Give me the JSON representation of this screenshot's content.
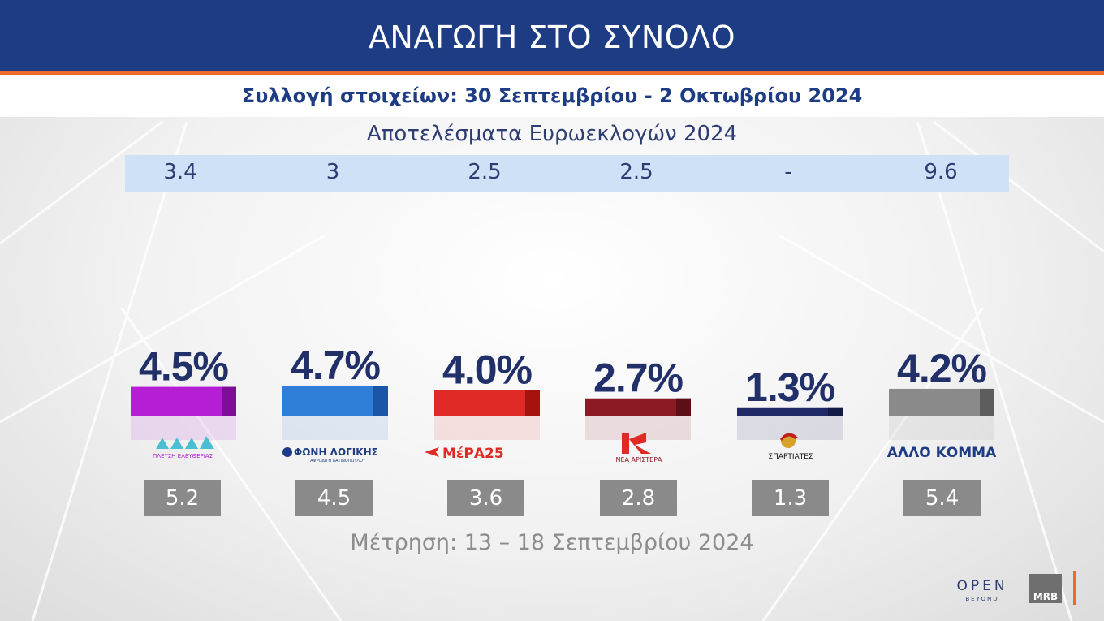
{
  "header": {
    "title": "ΑΝΑΓΩΓΗ ΣΤΟ ΣΥΝΟΛΟ",
    "subtitle": "Συλλογή στοιχείων: 30 Σεπτεμβρίου  - 2 Οκτωβρίου 2024"
  },
  "euro": {
    "heading": "Αποτελέσματα Ευρωεκλογών 2024",
    "values": [
      "3.4",
      "3",
      "2.5",
      "2.5",
      "-",
      "9.6"
    ]
  },
  "measurement_label": "Μέτρηση: 13 – 18 Σεπτεμβρίου 2024",
  "logos": {
    "party1_text": "ΠΛΕΥΣΗ ΕΛΕΥΘΕΡΙΑΣ",
    "party2_text": "ΦΩΝΗ ΛΟΓΙΚΗΣ",
    "party2_sub": "ΑΦΡΟΔΙΤΗ ΛΑΤΙΝΟΠΟΥΛΟΥ",
    "party3_text": "ΜέΡΑ25",
    "party4_text": "ΝΕΑ ΑΡΙΣΤΕΡΑ",
    "party5_text": "ΣΠΑΡΤΙΑΤΕΣ",
    "party6_text": "ΑΛΛΟ ΚΟΜΜΑ",
    "open_text": "OPEN",
    "open_sub": "BEYOND",
    "mrb_text": "MRB"
  },
  "chart_data": {
    "type": "bar",
    "series": [
      {
        "values": [
          4.5,
          4.7,
          4.0,
          2.7,
          1.3,
          4.2
        ]
      }
    ],
    "value_labels": [
      "4.5%",
      "4.7%",
      "4.0%",
      "2.7%",
      "1.3%",
      "4.2%"
    ],
    "previous_values": [
      "5.2",
      "4.5",
      "3.6",
      "2.8",
      "1.3",
      "5.4"
    ],
    "colors": [
      "#b41fd6",
      "#2f7ed8",
      "#e02a26",
      "#8b1a24",
      "#1f2a66",
      "#8a8a8a"
    ],
    "dark_colors": [
      "#7c0f96",
      "#1a55a8",
      "#a5130f",
      "#5c0f16",
      "#121a45",
      "#5d5d5d"
    ]
  }
}
